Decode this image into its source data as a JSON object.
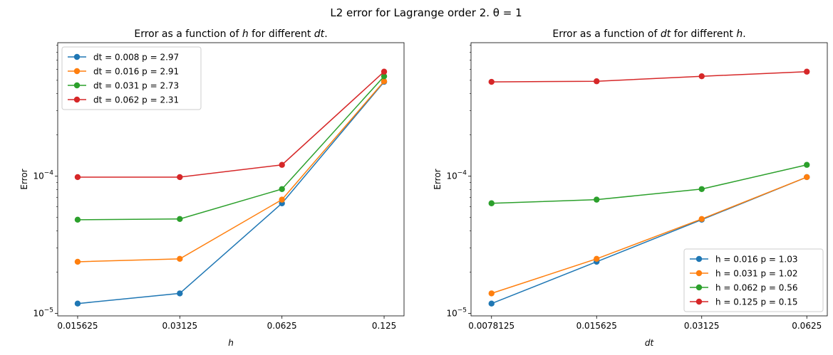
{
  "suptitle": "L2 error for Lagrange order 2. θ = 1",
  "chart_data": [
    {
      "type": "line",
      "title": "Error as a function of h for different dt.",
      "xlabel": "h",
      "ylabel": "Error",
      "xscale": "log2",
      "yscale": "log10",
      "x": [
        0.015625,
        0.03125,
        0.0625,
        0.125
      ],
      "xticklabels": [
        "0.015625",
        "0.03125",
        "0.0625",
        "0.125"
      ],
      "yticks": [
        {
          "value": 1e-05,
          "base": "10",
          "exp": "−5"
        },
        {
          "value": 0.0001,
          "base": "10",
          "exp": "−4"
        }
      ],
      "ylim": [
        9.6e-06,
        0.00094
      ],
      "legend_position": "upper left",
      "grid": false,
      "series": [
        {
          "name": "dt = 0.008  p = 2.97",
          "color": "#1f77b4",
          "values": [
            1.18e-05,
            1.4e-05,
            6.35e-05,
            0.000487
          ]
        },
        {
          "name": "dt = 0.016  p = 2.91",
          "color": "#ff7f0e",
          "values": [
            2.38e-05,
            2.5e-05,
            6.75e-05,
            0.000492
          ]
        },
        {
          "name": "dt = 0.031  p = 2.73",
          "color": "#2ca02c",
          "values": [
            4.82e-05,
            4.88e-05,
            8.06e-05,
            0.000535
          ]
        },
        {
          "name": "dt = 0.062  p = 2.31",
          "color": "#d62728",
          "values": [
            9.85e-05,
            9.85e-05,
            0.000121,
            0.000578
          ]
        }
      ]
    },
    {
      "type": "line",
      "title": "Error as a function of dt for different h.",
      "xlabel": "dt",
      "ylabel": "Error",
      "xscale": "log2",
      "yscale": "log10",
      "x": [
        0.0078125,
        0.015625,
        0.03125,
        0.0625
      ],
      "xticklabels": [
        "0.0078125",
        "0.015625",
        "0.03125",
        "0.0625"
      ],
      "yticks": [
        {
          "value": 1e-05,
          "base": "10",
          "exp": "−5"
        },
        {
          "value": 0.0001,
          "base": "10",
          "exp": "−4"
        }
      ],
      "ylim": [
        9.6e-06,
        0.00094
      ],
      "legend_position": "lower right",
      "grid": false,
      "series": [
        {
          "name": "h = 0.016  p = 1.03",
          "color": "#1f77b4",
          "values": [
            1.18e-05,
            2.38e-05,
            4.82e-05,
            9.85e-05
          ]
        },
        {
          "name": "h = 0.031  p = 1.02",
          "color": "#ff7f0e",
          "values": [
            1.4e-05,
            2.5e-05,
            4.88e-05,
            9.85e-05
          ]
        },
        {
          "name": "h = 0.062  p = 0.56",
          "color": "#2ca02c",
          "values": [
            6.35e-05,
            6.75e-05,
            8.06e-05,
            0.000121
          ]
        },
        {
          "name": "h = 0.125  p = 0.15",
          "color": "#d62728",
          "values": [
            0.000487,
            0.000492,
            0.000535,
            0.000578
          ]
        }
      ]
    }
  ]
}
